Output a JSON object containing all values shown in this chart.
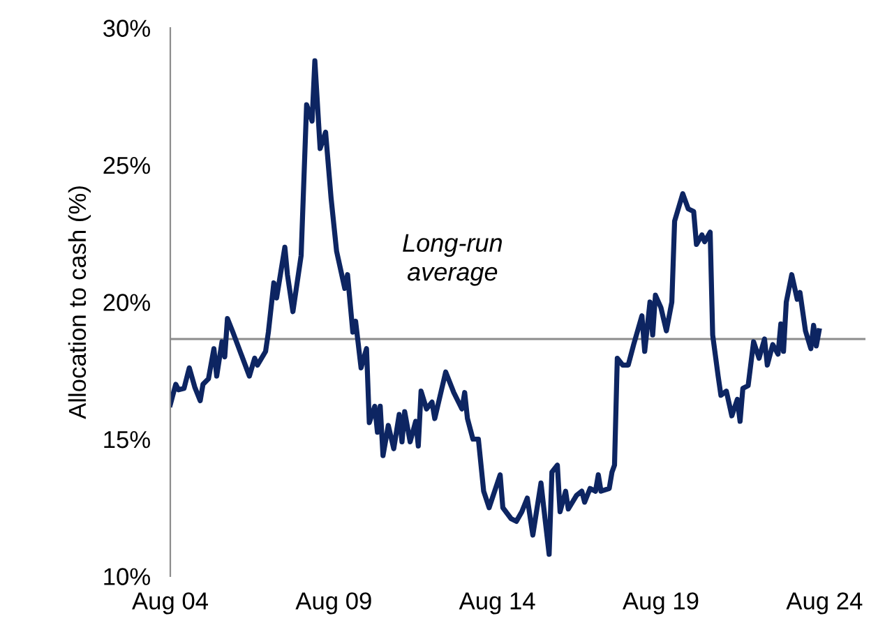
{
  "chart_data": {
    "type": "line",
    "ylabel": "Allocation to cash (%)",
    "x": [
      "2004-08",
      "2004-10",
      "2004-11",
      "2005-01",
      "2005-03",
      "2005-05",
      "2005-07",
      "2005-08",
      "2005-10",
      "2005-12",
      "2006-01",
      "2006-03",
      "2006-04",
      "2006-05",
      "2006-07",
      "2006-10",
      "2007-01",
      "2007-03",
      "2007-04",
      "2007-07",
      "2007-08",
      "2007-10",
      "2007-11",
      "2008-02",
      "2008-03",
      "2008-05",
      "2008-08",
      "2008-10",
      "2008-12",
      "2009-01",
      "2009-03",
      "2009-05",
      "2009-07",
      "2009-09",
      "2009-12",
      "2010-01",
      "2010-03",
      "2010-04",
      "2010-06",
      "2010-08",
      "2010-09",
      "2010-11",
      "2010-12",
      "2011-01",
      "2011-02",
      "2011-04",
      "2011-06",
      "2011-08",
      "2011-09",
      "2011-10",
      "2011-12",
      "2012-02",
      "2012-03",
      "2012-04",
      "2012-06",
      "2012-08",
      "2012-09",
      "2013-01",
      "2013-04",
      "2013-07",
      "2013-08",
      "2013-09",
      "2013-11",
      "2014-01",
      "2014-03",
      "2014-05",
      "2014-09",
      "2014-10",
      "2015-01",
      "2015-03",
      "2015-05",
      "2015-07",
      "2015-09",
      "2015-12",
      "2016-01",
      "2016-03",
      "2016-04",
      "2016-06",
      "2016-07",
      "2016-09",
      "2016-10",
      "2017-01",
      "2017-03",
      "2017-04",
      "2017-06",
      "2017-08",
      "2017-09",
      "2017-10",
      "2018-01",
      "2018-02",
      "2018-03",
      "2018-04",
      "2018-06",
      "2018-08",
      "2018-10",
      "2019-01",
      "2019-02",
      "2019-04",
      "2019-05",
      "2019-06",
      "2019-08",
      "2019-10",
      "2019-12",
      "2020-01",
      "2020-04",
      "2020-06",
      "2020-08",
      "2020-09",
      "2020-11",
      "2020-12",
      "2021-02",
      "2021-03",
      "2021-05",
      "2021-06",
      "2021-08",
      "2021-10",
      "2021-12",
      "2022-01",
      "2022-02",
      "2022-04",
      "2022-06",
      "2022-08",
      "2022-10",
      "2022-11",
      "2023-01",
      "2023-03",
      "2023-04",
      "2023-05",
      "2023-06",
      "2023-08",
      "2023-10",
      "2023-11",
      "2024-01",
      "2024-03",
      "2024-04",
      "2024-05",
      "2024-06"
    ],
    "series": [
      {
        "color": "#0d2562",
        "values": [
          16.26,
          17.0,
          16.8,
          16.85,
          17.6,
          16.9,
          16.4,
          17.0,
          17.2,
          18.3,
          17.3,
          18.55,
          18.0,
          19.4,
          18.9,
          18.1,
          17.3,
          17.95,
          17.7,
          18.2,
          18.9,
          20.7,
          20.15,
          22.0,
          21.0,
          19.65,
          21.7,
          27.2,
          26.6,
          28.8,
          25.6,
          26.2,
          23.8,
          21.85,
          20.5,
          21.0,
          18.9,
          19.3,
          17.6,
          18.3,
          15.6,
          16.2,
          15.25,
          16.2,
          14.4,
          15.5,
          14.65,
          15.9,
          14.9,
          16.0,
          14.9,
          15.65,
          14.75,
          16.75,
          16.1,
          16.35,
          15.75,
          17.45,
          16.7,
          16.1,
          16.7,
          15.75,
          15.0,
          15.0,
          13.1,
          12.5,
          13.7,
          12.5,
          12.1,
          12.0,
          12.35,
          12.85,
          11.5,
          13.4,
          12.5,
          10.8,
          13.8,
          14.05,
          12.35,
          13.1,
          12.45,
          12.95,
          13.1,
          12.7,
          13.2,
          13.1,
          13.7,
          13.1,
          13.2,
          13.8,
          14.05,
          17.95,
          17.7,
          17.7,
          18.45,
          19.5,
          18.2,
          20.0,
          18.8,
          20.25,
          19.8,
          18.95,
          20.0,
          22.95,
          23.95,
          23.4,
          23.3,
          22.1,
          22.45,
          22.2,
          22.55,
          18.8,
          17.3,
          16.6,
          16.75,
          15.85,
          16.45,
          15.65,
          16.85,
          16.95,
          18.55,
          17.95,
          18.65,
          17.7,
          18.45,
          18.1,
          19.2,
          18.2,
          20.0,
          21.0,
          20.1,
          20.35,
          18.95,
          18.3,
          19.15,
          18.4,
          18.95
        ]
      }
    ],
    "xlim": [
      "2004-08",
      "2025-11"
    ],
    "xticks": [
      {
        "value": "2004-08",
        "label": "Aug 04"
      },
      {
        "value": "2009-08",
        "label": "Aug 09"
      },
      {
        "value": "2014-08",
        "label": "Aug 14"
      },
      {
        "value": "2019-08",
        "label": "Aug 19"
      },
      {
        "value": "2024-08",
        "label": "Aug 24"
      }
    ],
    "ylim": [
      10,
      30
    ],
    "yticks": [
      {
        "value": 10,
        "label": "10%"
      },
      {
        "value": 15,
        "label": "15%"
      },
      {
        "value": 20,
        "label": "20%"
      },
      {
        "value": 25,
        "label": "25%"
      },
      {
        "value": 30,
        "label": "30%"
      }
    ],
    "ref_lines": [
      {
        "axis": "y",
        "value": 18.65,
        "label": "Long-run\naverage",
        "color": "#8c8c8c"
      }
    ],
    "grid": false,
    "legend": false,
    "marker": "none",
    "line_style": "solid"
  }
}
